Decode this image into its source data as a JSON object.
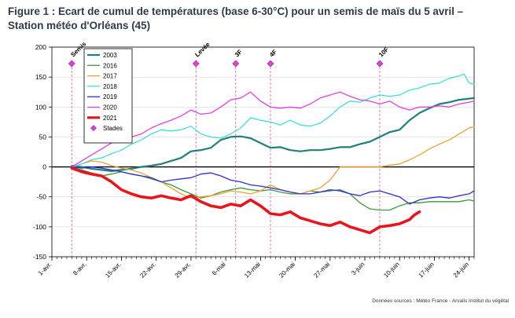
{
  "page": {
    "title_line1": "Figure 1 : Ecart de cumul de températures (base 6-30°C) pour un semis de maïs du 5 avril –",
    "title_line2": "Station météo d'Orléans (45)",
    "source": "Données sources : Météo France - Arvalis Institut du végétal"
  },
  "chart_data": {
    "type": "line",
    "ylim": [
      -150,
      200
    ],
    "yticks": [
      -150,
      -100,
      -50,
      0,
      50,
      100,
      150,
      200
    ],
    "xlim": [
      0,
      85
    ],
    "xticks": [
      {
        "x": 0,
        "label": "1-avr."
      },
      {
        "x": 7,
        "label": "8-avr."
      },
      {
        "x": 14,
        "label": "15-avr."
      },
      {
        "x": 21,
        "label": "22-avr."
      },
      {
        "x": 28,
        "label": "29-avr."
      },
      {
        "x": 35,
        "label": "6-mai"
      },
      {
        "x": 42,
        "label": "13-mai"
      },
      {
        "x": 49,
        "label": "20-mai"
      },
      {
        "x": 56,
        "label": "27-mai"
      },
      {
        "x": 63,
        "label": "3-juin"
      },
      {
        "x": 70,
        "label": "10-juin"
      },
      {
        "x": 77,
        "label": "17-juin"
      },
      {
        "x": 84,
        "label": "24-juin"
      }
    ],
    "stages": [
      {
        "x": 4,
        "label": "Semis"
      },
      {
        "x": 29,
        "label": "Levée"
      },
      {
        "x": 37,
        "label": "3F"
      },
      {
        "x": 44,
        "label": "4F"
      },
      {
        "x": 66,
        "label": "10F"
      }
    ],
    "stages_legend": "Stades",
    "series": [
      {
        "name": "2003",
        "color": "#1f7f7a",
        "width": 2.2,
        "points": [
          [
            4,
            2
          ],
          [
            6,
            0
          ],
          [
            8,
            -3
          ],
          [
            10,
            -5
          ],
          [
            12,
            -7
          ],
          [
            14,
            -5
          ],
          [
            16,
            -3
          ],
          [
            18,
            0
          ],
          [
            20,
            2
          ],
          [
            22,
            5
          ],
          [
            24,
            10
          ],
          [
            26,
            15
          ],
          [
            28,
            26
          ],
          [
            30,
            28
          ],
          [
            32,
            32
          ],
          [
            34,
            45
          ],
          [
            36,
            50
          ],
          [
            38,
            51
          ],
          [
            40,
            48
          ],
          [
            42,
            40
          ],
          [
            44,
            32
          ],
          [
            46,
            33
          ],
          [
            48,
            28
          ],
          [
            50,
            26
          ],
          [
            52,
            28
          ],
          [
            54,
            28
          ],
          [
            56,
            30
          ],
          [
            58,
            33
          ],
          [
            60,
            33
          ],
          [
            62,
            38
          ],
          [
            64,
            42
          ],
          [
            66,
            50
          ],
          [
            68,
            58
          ],
          [
            70,
            62
          ],
          [
            72,
            78
          ],
          [
            74,
            90
          ],
          [
            76,
            98
          ],
          [
            78,
            105
          ],
          [
            80,
            108
          ],
          [
            82,
            112
          ],
          [
            84,
            114
          ],
          [
            85,
            115
          ]
        ]
      },
      {
        "name": "2016",
        "color": "#3a9a3a",
        "width": 1.3,
        "points": [
          [
            4,
            0
          ],
          [
            6,
            -5
          ],
          [
            8,
            -10
          ],
          [
            10,
            -15
          ],
          [
            12,
            -12
          ],
          [
            14,
            -8
          ],
          [
            16,
            -12
          ],
          [
            18,
            -15
          ],
          [
            20,
            -20
          ],
          [
            22,
            -25
          ],
          [
            24,
            -30
          ],
          [
            26,
            -38
          ],
          [
            28,
            -45
          ],
          [
            30,
            -52
          ],
          [
            32,
            -48
          ],
          [
            34,
            -42
          ],
          [
            36,
            -38
          ],
          [
            38,
            -35
          ],
          [
            40,
            -38
          ],
          [
            42,
            -40
          ],
          [
            44,
            -38
          ],
          [
            46,
            -42
          ],
          [
            48,
            -45
          ],
          [
            50,
            -45
          ],
          [
            52,
            -40
          ],
          [
            54,
            -42
          ],
          [
            56,
            -40
          ],
          [
            58,
            -38
          ],
          [
            60,
            -45
          ],
          [
            62,
            -60
          ],
          [
            64,
            -70
          ],
          [
            66,
            -72
          ],
          [
            68,
            -72
          ],
          [
            70,
            -65
          ],
          [
            72,
            -60
          ],
          [
            74,
            -60
          ],
          [
            76,
            -58
          ],
          [
            78,
            -58
          ],
          [
            80,
            -58
          ],
          [
            82,
            -58
          ],
          [
            84,
            -55
          ],
          [
            85,
            -57
          ]
        ]
      },
      {
        "name": "2017",
        "color": "#f0a030",
        "width": 1.3,
        "points": [
          [
            4,
            0
          ],
          [
            6,
            5
          ],
          [
            8,
            10
          ],
          [
            10,
            8
          ],
          [
            12,
            2
          ],
          [
            14,
            -2
          ],
          [
            16,
            -5
          ],
          [
            18,
            -10
          ],
          [
            20,
            -18
          ],
          [
            22,
            -25
          ],
          [
            24,
            -35
          ],
          [
            26,
            -45
          ],
          [
            28,
            -52
          ],
          [
            30,
            -50
          ],
          [
            32,
            -48
          ],
          [
            34,
            -45
          ],
          [
            36,
            -40
          ],
          [
            38,
            -42
          ],
          [
            40,
            -45
          ],
          [
            42,
            -40
          ],
          [
            44,
            -30
          ],
          [
            46,
            -38
          ],
          [
            48,
            -42
          ],
          [
            50,
            -45
          ],
          [
            52,
            -40
          ],
          [
            54,
            -35
          ],
          [
            56,
            -22
          ],
          [
            58,
            0
          ],
          [
            60,
            0
          ],
          [
            62,
            0
          ],
          [
            64,
            0
          ],
          [
            66,
            0
          ],
          [
            68,
            3
          ],
          [
            70,
            5
          ],
          [
            72,
            12
          ],
          [
            74,
            20
          ],
          [
            76,
            30
          ],
          [
            78,
            38
          ],
          [
            80,
            45
          ],
          [
            82,
            55
          ],
          [
            84,
            65
          ],
          [
            85,
            67
          ]
        ]
      },
      {
        "name": "2018",
        "color": "#40e0d0",
        "width": 1.3,
        "points": [
          [
            4,
            0
          ],
          [
            6,
            5
          ],
          [
            8,
            12
          ],
          [
            10,
            15
          ],
          [
            12,
            22
          ],
          [
            14,
            28
          ],
          [
            16,
            38
          ],
          [
            18,
            45
          ],
          [
            20,
            55
          ],
          [
            22,
            62
          ],
          [
            24,
            60
          ],
          [
            26,
            62
          ],
          [
            28,
            68
          ],
          [
            30,
            55
          ],
          [
            32,
            50
          ],
          [
            34,
            48
          ],
          [
            36,
            55
          ],
          [
            38,
            65
          ],
          [
            40,
            82
          ],
          [
            42,
            78
          ],
          [
            44,
            75
          ],
          [
            46,
            70
          ],
          [
            48,
            78
          ],
          [
            50,
            70
          ],
          [
            52,
            68
          ],
          [
            54,
            73
          ],
          [
            56,
            85
          ],
          [
            58,
            100
          ],
          [
            60,
            110
          ],
          [
            62,
            108
          ],
          [
            64,
            115
          ],
          [
            66,
            120
          ],
          [
            68,
            118
          ],
          [
            70,
            120
          ],
          [
            72,
            128
          ],
          [
            74,
            132
          ],
          [
            76,
            138
          ],
          [
            78,
            140
          ],
          [
            80,
            148
          ],
          [
            82,
            152
          ],
          [
            83,
            155
          ],
          [
            84,
            140
          ],
          [
            85,
            138
          ]
        ]
      },
      {
        "name": "2019",
        "color": "#2e2fc8",
        "width": 1.3,
        "points": [
          [
            4,
            0
          ],
          [
            6,
            -2
          ],
          [
            8,
            0
          ],
          [
            10,
            -2
          ],
          [
            12,
            -5
          ],
          [
            14,
            -8
          ],
          [
            16,
            -12
          ],
          [
            18,
            -15
          ],
          [
            20,
            -18
          ],
          [
            22,
            -25
          ],
          [
            24,
            -22
          ],
          [
            26,
            -20
          ],
          [
            28,
            -18
          ],
          [
            30,
            -12
          ],
          [
            32,
            -10
          ],
          [
            34,
            -15
          ],
          [
            36,
            -22
          ],
          [
            38,
            -25
          ],
          [
            40,
            -30
          ],
          [
            42,
            -32
          ],
          [
            44,
            -35
          ],
          [
            46,
            -38
          ],
          [
            48,
            -42
          ],
          [
            50,
            -45
          ],
          [
            52,
            -45
          ],
          [
            54,
            -42
          ],
          [
            56,
            -38
          ],
          [
            58,
            -40
          ],
          [
            60,
            -45
          ],
          [
            62,
            -48
          ],
          [
            64,
            -42
          ],
          [
            66,
            -40
          ],
          [
            68,
            -45
          ],
          [
            70,
            -50
          ],
          [
            72,
            -62
          ],
          [
            74,
            -55
          ],
          [
            76,
            -52
          ],
          [
            78,
            -50
          ],
          [
            80,
            -52
          ],
          [
            82,
            -48
          ],
          [
            84,
            -45
          ],
          [
            85,
            -40
          ]
        ]
      },
      {
        "name": "2020",
        "color": "#e040e0",
        "width": 1.3,
        "points": [
          [
            4,
            0
          ],
          [
            6,
            10
          ],
          [
            8,
            20
          ],
          [
            10,
            30
          ],
          [
            12,
            40
          ],
          [
            14,
            45
          ],
          [
            16,
            50
          ],
          [
            18,
            55
          ],
          [
            20,
            65
          ],
          [
            22,
            72
          ],
          [
            24,
            78
          ],
          [
            26,
            85
          ],
          [
            28,
            95
          ],
          [
            30,
            88
          ],
          [
            32,
            90
          ],
          [
            34,
            100
          ],
          [
            36,
            112
          ],
          [
            38,
            115
          ],
          [
            40,
            125
          ],
          [
            42,
            110
          ],
          [
            44,
            100
          ],
          [
            46,
            98
          ],
          [
            48,
            100
          ],
          [
            50,
            98
          ],
          [
            52,
            105
          ],
          [
            54,
            115
          ],
          [
            56,
            120
          ],
          [
            58,
            125
          ],
          [
            60,
            118
          ],
          [
            62,
            112
          ],
          [
            64,
            110
          ],
          [
            66,
            105
          ],
          [
            68,
            110
          ],
          [
            70,
            100
          ],
          [
            72,
            95
          ],
          [
            74,
            100
          ],
          [
            76,
            100
          ],
          [
            78,
            102
          ],
          [
            80,
            100
          ],
          [
            82,
            105
          ],
          [
            84,
            108
          ],
          [
            85,
            110
          ]
        ]
      },
      {
        "name": "2021",
        "color": "#e8161c",
        "width": 3.6,
        "points": [
          [
            4,
            -2
          ],
          [
            6,
            -8
          ],
          [
            8,
            -12
          ],
          [
            10,
            -15
          ],
          [
            12,
            -25
          ],
          [
            14,
            -38
          ],
          [
            16,
            -45
          ],
          [
            18,
            -50
          ],
          [
            20,
            -52
          ],
          [
            22,
            -48
          ],
          [
            24,
            -52
          ],
          [
            26,
            -55
          ],
          [
            28,
            -48
          ],
          [
            30,
            -58
          ],
          [
            32,
            -65
          ],
          [
            34,
            -68
          ],
          [
            36,
            -62
          ],
          [
            38,
            -65
          ],
          [
            40,
            -55
          ],
          [
            42,
            -65
          ],
          [
            44,
            -78
          ],
          [
            46,
            -80
          ],
          [
            48,
            -75
          ],
          [
            50,
            -85
          ],
          [
            52,
            -90
          ],
          [
            54,
            -95
          ],
          [
            56,
            -98
          ],
          [
            58,
            -92
          ],
          [
            60,
            -100
          ],
          [
            62,
            -105
          ],
          [
            64,
            -110
          ],
          [
            66,
            -100
          ],
          [
            68,
            -98
          ],
          [
            70,
            -95
          ],
          [
            72,
            -88
          ],
          [
            73,
            -80
          ],
          [
            74,
            -75
          ]
        ]
      }
    ]
  }
}
